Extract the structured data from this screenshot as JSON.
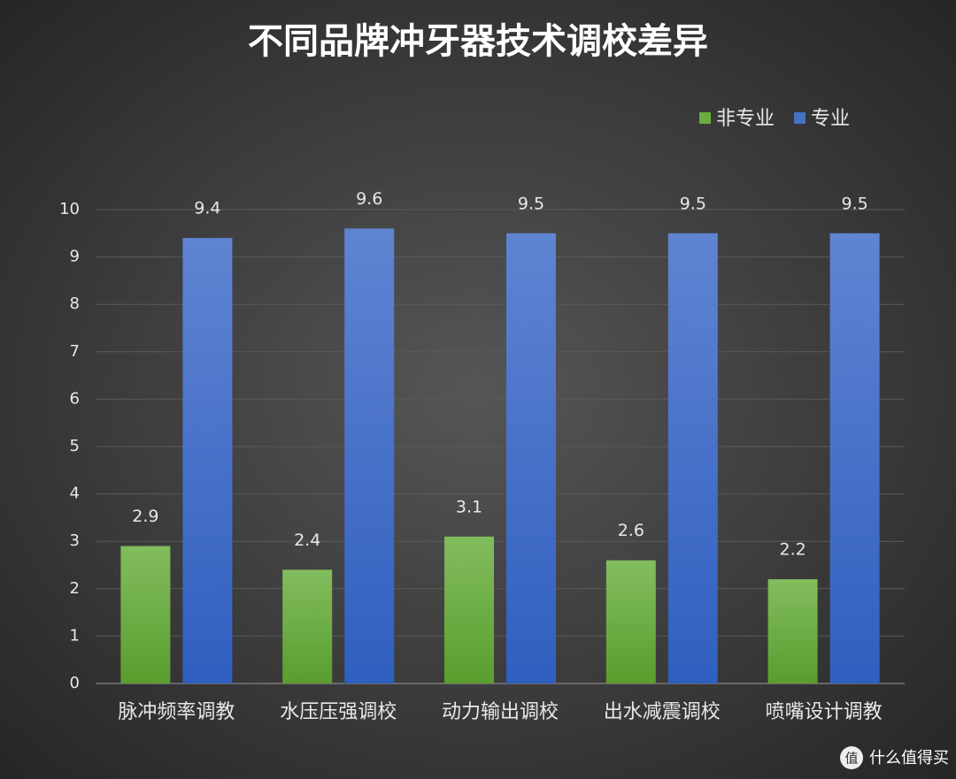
{
  "chart_data": {
    "type": "bar",
    "title": "不同品牌冲牙器技术调校差异",
    "categories": [
      "脉冲频率调教",
      "水压压强调校",
      "动力输出调校",
      "出水减震调校",
      "喷嘴设计调教"
    ],
    "series": [
      {
        "name": "非专业",
        "color": "#6aae3f",
        "values": [
          2.9,
          2.4,
          3.1,
          2.6,
          2.2
        ]
      },
      {
        "name": "专业",
        "color": "#4472c4",
        "values": [
          9.4,
          9.6,
          9.5,
          9.5,
          9.5
        ]
      }
    ],
    "ylim": [
      0,
      10
    ],
    "yticks": [
      0,
      1,
      2,
      3,
      4,
      5,
      6,
      7,
      8,
      9,
      10
    ],
    "grid": true,
    "legend": "top-right"
  },
  "watermark": {
    "icon": "值",
    "text": "什么值得买"
  }
}
